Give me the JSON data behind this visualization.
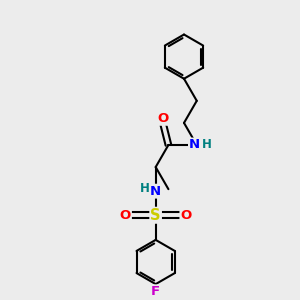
{
  "background_color": "#ececec",
  "bond_color": "#000000",
  "atom_colors": {
    "O": "#ff0000",
    "N": "#0000ff",
    "S": "#cccc00",
    "F": "#cc00cc",
    "H": "#008080",
    "C": "#000000"
  },
  "figsize": [
    3.0,
    3.0
  ],
  "dpi": 100,
  "xlim": [
    0,
    10
  ],
  "ylim": [
    0,
    10
  ],
  "ring_r": 0.78,
  "bond_lw": 1.5
}
